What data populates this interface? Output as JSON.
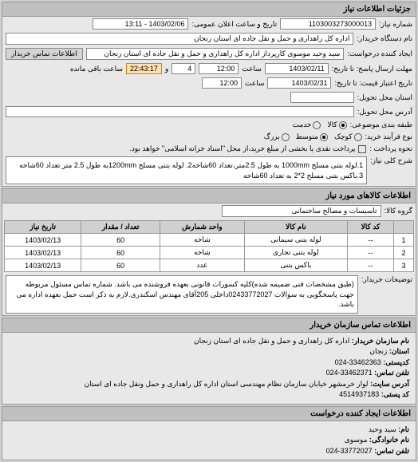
{
  "panels": {
    "need_info": "جزئیات اطلاعات نیاز",
    "goods_info": "اطلاعات کالاهای مورد نیاز",
    "buyer_contact": "اطلاعات تماس سازمان خریدار",
    "requester_contact": "اطلاعات ایجاد کننده درخواست"
  },
  "fields": {
    "need_no_label": "شماره نیاز:",
    "need_no": "1103003273000013",
    "announce_label": "تاریخ و ساعت اعلان عمومی:",
    "announce_value": "1403/02/06 - 13:11",
    "buyer_device_label": "نام دستگاه خریدار:",
    "buyer_device": "اداره کل راهداری و حمل و نقل جاده ای استان زنجان",
    "requester_label": "ایجاد کننده درخواست:",
    "requester": "سید وحید موسوی کارپرداز اداره کل راهداری و حمل و نقل جاده ای استان زنجان",
    "buyer_contact_btn": "اطلاعات تماس خریدار",
    "deadline_send_label": "مهلت ارسال پاسخ: تا تاریخ:",
    "deadline_send_date": "1403/02/11",
    "time_label": "ساعت",
    "deadline_send_time": "12:00",
    "remain_days": "4",
    "remain_time": "22:43:17",
    "remain_text": "ساعت باقی مانده",
    "validity_label": "تاریخ اعتبار قیمت: تا تاریخ:",
    "validity_date": "1403/02/31",
    "validity_time": "12:00",
    "delivery_loc_label": "استان محل تحویل:",
    "delivery_addr_label": "آدرس محل تحویل:",
    "qty_type_label": "نوع فرآیند خرید:",
    "pack_type_label": "طبقه بندی موضوعی:",
    "qty_opts": {
      "kala": "کالا",
      "khadamat": "خدمت"
    },
    "size_opts": {
      "small": "کوچک",
      "medium": "متوسط",
      "large": "بزرگ"
    },
    "pay_type_label": "نحوه پرداخت :",
    "pay_text": "پرداخت نقدی یا بخشی از مبلغ خرید،از محل \"اسناد خزانه اسلامی\" خواهد بود.",
    "desc_label": "شرح کلی نیاز:",
    "desc_text": "1.لوله بتنی مسلح 1000mm به طول 2.5متر،تعداد 60شاخه2. لوله بتنی مسلح 1200mmبه طول 2.5 متر تعداد 60شاخه 3.باکس بتنی مسلح 2*2 به تعداد 60شاخه",
    "goods_group_label": "گروه کالا:",
    "goods_group": "تاسیسات و مصالح ساختمانی",
    "notes_label": "توضیحات خریدار:",
    "notes_text": "(طبق مشخصات فنی ضمیمه شده)کلیه کسورات قانونی بعهده فروشنده می باشد. شماره تماس مسئول مربوطه جهت پاسخگویی به سوالات 02433772027داخلی 205آقای مهندس اسکندری.لازم به ذکر است حمل بعهده اداره می باشد."
  },
  "table": {
    "cols": [
      "",
      "کد کالا",
      "نام کالا",
      "واحد شمارش",
      "تعداد / مقدار",
      "تاریخ نیاز"
    ],
    "rows": [
      [
        "1",
        "--",
        "لوله بتنی سیمانی",
        "شاخه",
        "60",
        "1403/02/13"
      ],
      [
        "2",
        "--",
        "لوله بتنی تجاری",
        "شاخه",
        "60",
        "1403/02/13"
      ],
      [
        "3",
        "--",
        "باکس بتنی",
        "عدد",
        "60",
        "1403/02/13"
      ]
    ]
  },
  "buyer_contact": {
    "org_label": "نام سازمان خریدار:",
    "org": "اداره کل راهداری و حمل و نقل جاده ای استان زنجان",
    "province_label": "استان:",
    "province": "زنجان",
    "postal_label": "کدپستی:",
    "postal": "33462363-024",
    "phone_label": "تلفن تماس:",
    "phone": "33462371-024",
    "addr_label": "آدرس سایت:",
    "addr": "لوار خرمشهر خیابان سازمان نظام مهندسی استان اداره کل راهداری و حمل ونقل جاده ای استان",
    "postbox_label": "کد پستی:",
    "postbox": "4514937183"
  },
  "req_contact": {
    "name_label": "نام:",
    "name": "سید وحید",
    "family_label": "نام خانوادگی:",
    "family": "موسوی",
    "phone_label": "تلفن تماس:",
    "phone": "33772027-024"
  }
}
